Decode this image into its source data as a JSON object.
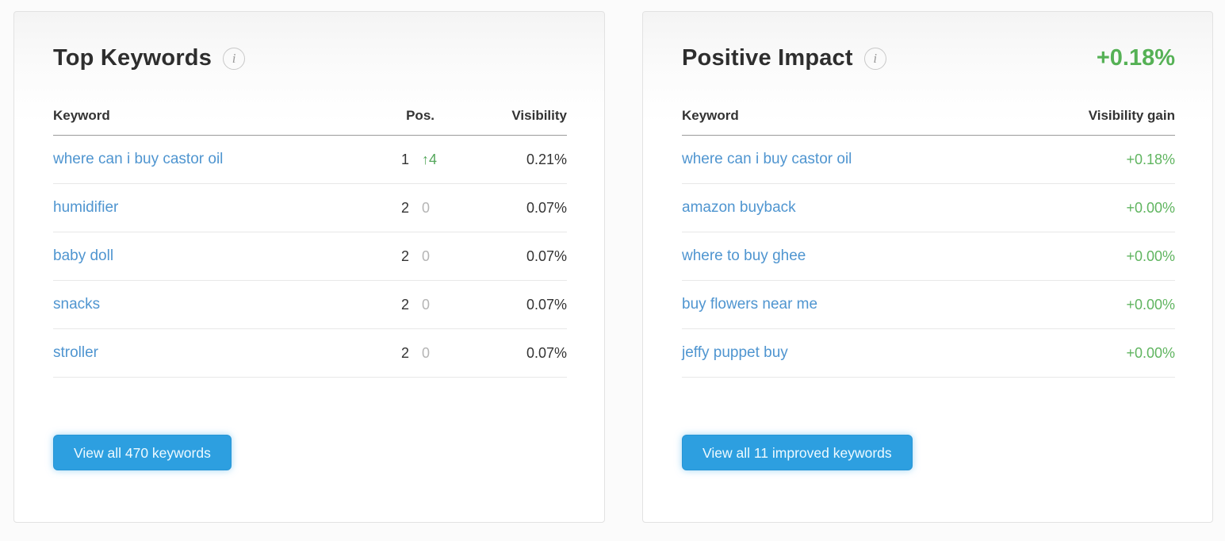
{
  "colors": {
    "link_blue": "#4f95d0",
    "button_blue": "#2d9fe0",
    "positive_green": "#55b155",
    "muted_gray": "#b5b5b5"
  },
  "icons": {
    "info_glyph": "i"
  },
  "top_keywords": {
    "title": "Top Keywords",
    "columns": {
      "keyword": "Keyword",
      "pos": "Pos.",
      "visibility": "Visibility"
    },
    "rows": [
      {
        "keyword": "where can i buy castor oil",
        "pos": "1",
        "delta": "↑4",
        "visibility": "0.21%"
      },
      {
        "keyword": "humidifier",
        "pos": "2",
        "delta": "0",
        "visibility": "0.07%"
      },
      {
        "keyword": "baby doll",
        "pos": "2",
        "delta": "0",
        "visibility": "0.07%"
      },
      {
        "keyword": "snacks",
        "pos": "2",
        "delta": "0",
        "visibility": "0.07%"
      },
      {
        "keyword": "stroller",
        "pos": "2",
        "delta": "0",
        "visibility": "0.07%"
      }
    ],
    "button_label": "View all 470 keywords"
  },
  "positive_impact": {
    "title": "Positive Impact",
    "headline_value": "+0.18%",
    "columns": {
      "keyword": "Keyword",
      "gain": "Visibility gain"
    },
    "rows": [
      {
        "keyword": "where can i buy castor oil",
        "gain": "+0.18%"
      },
      {
        "keyword": "amazon buyback",
        "gain": "+0.00%"
      },
      {
        "keyword": "where to buy ghee",
        "gain": "+0.00%"
      },
      {
        "keyword": "buy flowers near me",
        "gain": "+0.00%"
      },
      {
        "keyword": "jeffy puppet buy",
        "gain": "+0.00%"
      }
    ],
    "button_label": "View all 11 improved keywords"
  }
}
